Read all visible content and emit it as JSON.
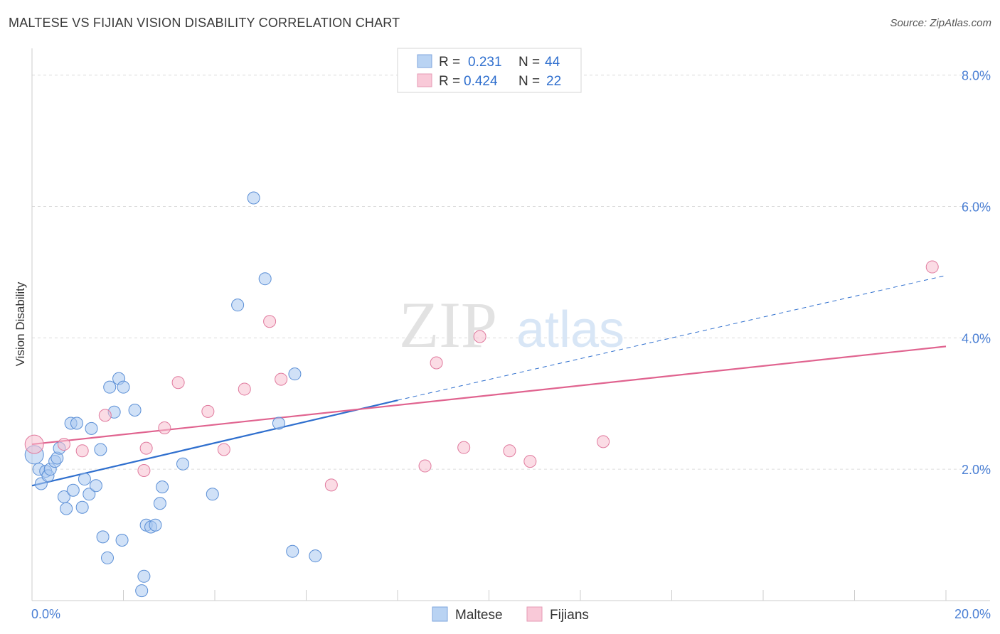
{
  "title": "MALTESE VS FIJIAN VISION DISABILITY CORRELATION CHART",
  "source": "Source: ZipAtlas.com",
  "chart_data": {
    "type": "scatter",
    "title": "MALTESE VS FIJIAN VISION DISABILITY CORRELATION CHART",
    "ylabel": "Vision Disability",
    "xlabel": "",
    "xlim": [
      0,
      20
    ],
    "ylim": [
      0,
      8.3
    ],
    "x_tick_labels": [
      {
        "value": 0,
        "label": "0.0%"
      },
      {
        "value": 20,
        "label": "20.0%"
      }
    ],
    "y_tick_labels": [
      {
        "value": 2,
        "label": "2.0%"
      },
      {
        "value": 4,
        "label": "4.0%"
      },
      {
        "value": 6,
        "label": "6.0%"
      },
      {
        "value": 8,
        "label": "8.0%"
      }
    ],
    "grid": true,
    "legend_stats": [
      {
        "r_label": "R =",
        "r_value": "0.231",
        "n_label": "N =",
        "n_value": "44"
      },
      {
        "r_label": "R =",
        "r_value": "0.424",
        "n_label": "N =",
        "n_value": "22"
      }
    ],
    "series": [
      {
        "name": "Maltese",
        "color": "#a9c8f0",
        "stroke": "#5b8fd6",
        "trend": {
          "x0": 0,
          "y0": 1.75,
          "x1": 8,
          "y1": 3.05,
          "dash_to_x": 20,
          "dash_to_y": 4.95,
          "color": "#2f6fce"
        },
        "points": [
          [
            0.05,
            2.22
          ],
          [
            0.15,
            2.0
          ],
          [
            0.2,
            1.78
          ],
          [
            0.3,
            1.97
          ],
          [
            0.35,
            1.9
          ],
          [
            0.4,
            2.0
          ],
          [
            0.5,
            2.12
          ],
          [
            0.55,
            2.17
          ],
          [
            0.6,
            2.32
          ],
          [
            0.7,
            1.58
          ],
          [
            0.75,
            1.4
          ],
          [
            0.85,
            2.7
          ],
          [
            0.9,
            1.68
          ],
          [
            0.98,
            2.7
          ],
          [
            1.1,
            1.42
          ],
          [
            1.15,
            1.85
          ],
          [
            1.25,
            1.62
          ],
          [
            1.3,
            2.62
          ],
          [
            1.4,
            1.75
          ],
          [
            1.5,
            2.3
          ],
          [
            1.55,
            0.97
          ],
          [
            1.65,
            0.65
          ],
          [
            1.7,
            3.25
          ],
          [
            1.8,
            2.87
          ],
          [
            1.9,
            3.38
          ],
          [
            1.97,
            0.92
          ],
          [
            2.0,
            3.25
          ],
          [
            2.25,
            2.9
          ],
          [
            2.4,
            0.15
          ],
          [
            2.45,
            0.37
          ],
          [
            2.5,
            1.15
          ],
          [
            2.6,
            1.12
          ],
          [
            2.7,
            1.15
          ],
          [
            2.8,
            1.48
          ],
          [
            2.85,
            1.73
          ],
          [
            3.3,
            2.08
          ],
          [
            3.95,
            1.62
          ],
          [
            4.5,
            4.5
          ],
          [
            4.85,
            6.13
          ],
          [
            5.1,
            4.9
          ],
          [
            5.4,
            2.7
          ],
          [
            5.7,
            0.75
          ],
          [
            5.75,
            3.45
          ],
          [
            6.2,
            0.68
          ]
        ]
      },
      {
        "name": "Fijians",
        "color": "#f7bfd0",
        "stroke": "#e07a9e",
        "trend": {
          "x0": 0,
          "y0": 2.38,
          "x1": 20,
          "y1": 3.87,
          "color": "#e0638f"
        },
        "points": [
          [
            0.05,
            2.38
          ],
          [
            0.7,
            2.38
          ],
          [
            1.1,
            2.28
          ],
          [
            1.6,
            2.82
          ],
          [
            2.45,
            1.98
          ],
          [
            2.5,
            2.32
          ],
          [
            2.9,
            2.63
          ],
          [
            3.2,
            3.32
          ],
          [
            3.85,
            2.88
          ],
          [
            4.2,
            2.3
          ],
          [
            4.65,
            3.22
          ],
          [
            5.2,
            4.25
          ],
          [
            5.45,
            3.37
          ],
          [
            6.55,
            1.76
          ],
          [
            8.6,
            2.05
          ],
          [
            8.85,
            3.62
          ],
          [
            9.45,
            2.33
          ],
          [
            9.8,
            4.02
          ],
          [
            10.45,
            2.28
          ],
          [
            10.9,
            2.12
          ],
          [
            12.5,
            2.42
          ],
          [
            19.7,
            5.08
          ]
        ]
      }
    ]
  },
  "watermark": {
    "zip": "ZIP",
    "atlas": "atlas"
  }
}
